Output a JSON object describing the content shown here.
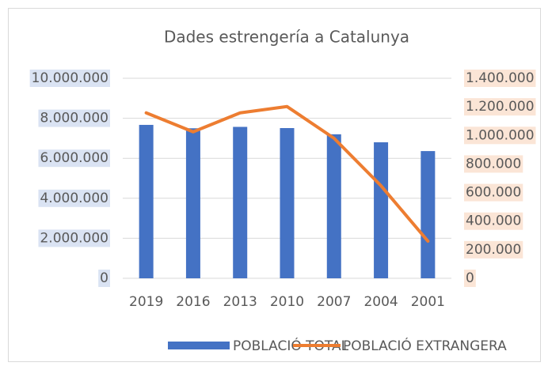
{
  "chart_data": {
    "type": "bar+line",
    "title": "Dades estrengería a Catalunya",
    "categories": [
      "2019",
      "2016",
      "2013",
      "2010",
      "2007",
      "2004",
      "2001"
    ],
    "series": [
      {
        "name": "POBLACIÓ TOTAL",
        "type": "bar",
        "color": "#4472c4",
        "axis": "y",
        "values": [
          7670000,
          7500000,
          7570000,
          7510000,
          7200000,
          6800000,
          6360000
        ]
      },
      {
        "name": "POBLACIÓ EXTRANGERA",
        "type": "line",
        "color": "#ed7d31",
        "axis": "y2",
        "values": [
          1158000,
          1025000,
          1158000,
          1202000,
          980000,
          648000,
          260000
        ]
      }
    ],
    "ylim": [
      0,
      10000000
    ],
    "yticks": [
      0,
      {
        "value": 2000000,
        "label": "2.000.000"
      },
      {
        "value": 4000000,
        "label": "4.000.000"
      },
      {
        "value": 6000000,
        "label": "6.000.000"
      },
      {
        "value": 8000000,
        "label": "8.000.000"
      },
      {
        "value": 10000000,
        "label": "10.000.000"
      }
    ],
    "y2lim": [
      0,
      1400000
    ],
    "y2ticks": [
      0,
      {
        "value": 200000,
        "label": "200.000"
      },
      {
        "value": 400000,
        "label": "400.000"
      },
      {
        "value": 600000,
        "label": "600.000"
      },
      {
        "value": 800000,
        "label": "800.000"
      },
      {
        "value": 1000000,
        "label": "1.000.000"
      },
      {
        "value": 1200000,
        "label": "1.200.000"
      },
      {
        "value": 1400000,
        "label": "1.400.000"
      }
    ],
    "grid": true,
    "legend": "bottom"
  }
}
